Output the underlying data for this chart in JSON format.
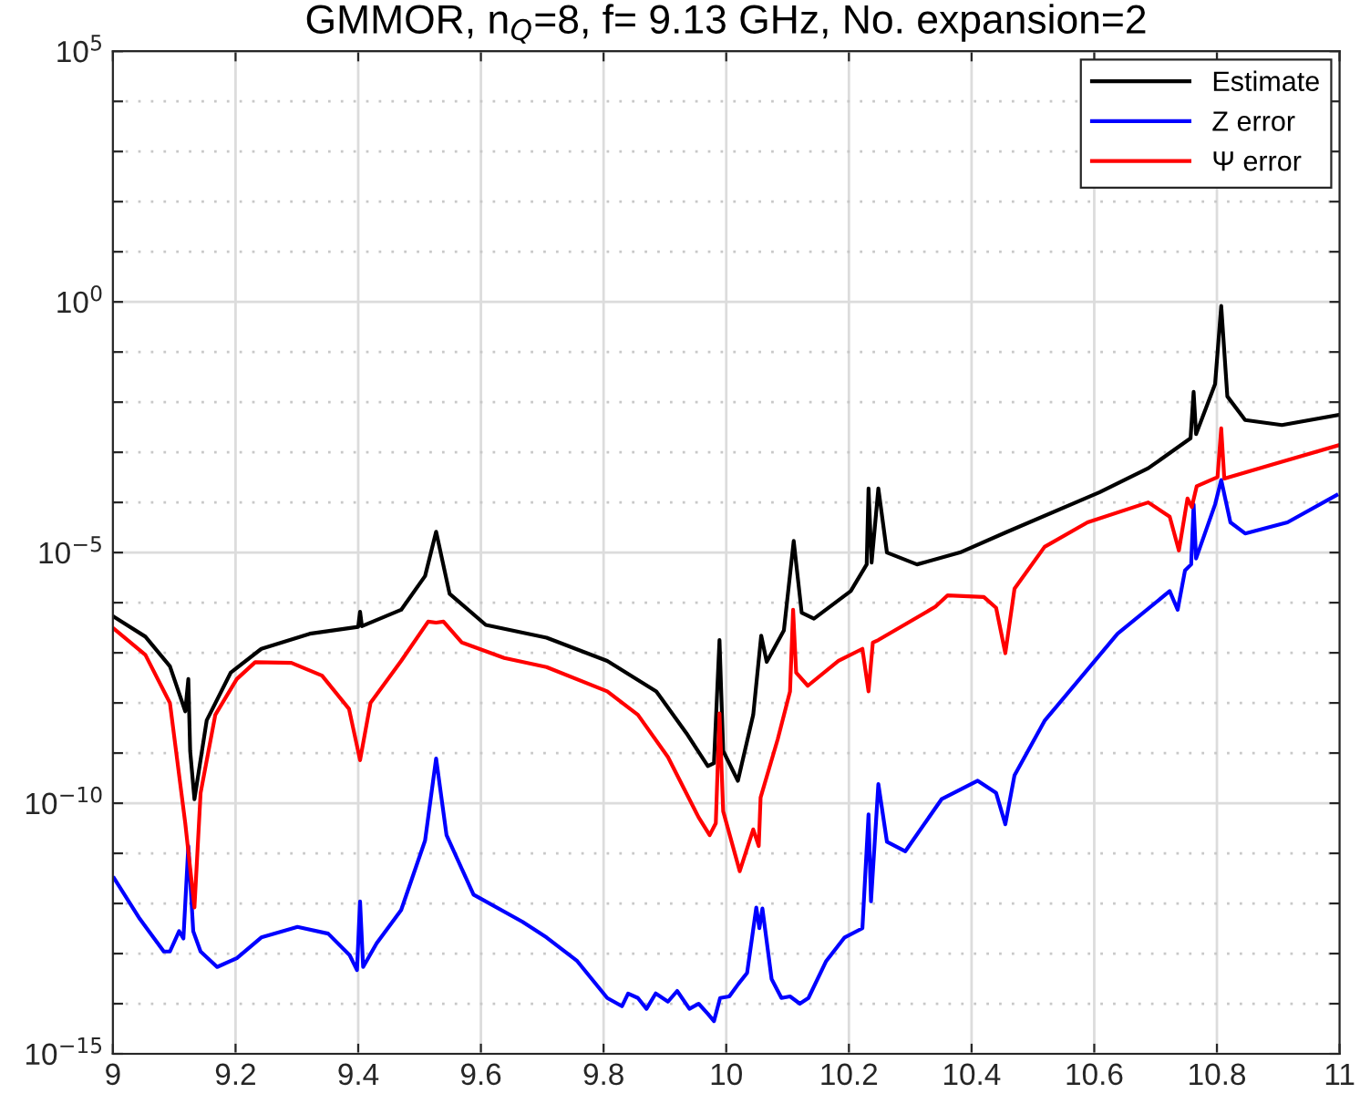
{
  "chart_data": {
    "type": "line",
    "title": "GMMOR, n$_{Q}$=8, f= 9.13 GHz, No. expansion=2",
    "log": "y",
    "grid": true,
    "legend": "top right",
    "line_style": "solid",
    "marker": "none",
    "xlim": [
      9,
      11
    ],
    "xticks": [
      9,
      9.2,
      9.4,
      9.6,
      9.8,
      10,
      10.2,
      10.4,
      10.6,
      10.8,
      11
    ],
    "ylim": [
      1e-15,
      100000.0
    ],
    "yticks": [
      {
        "value": 1e-15,
        "label": "10$^{−15}$"
      },
      {
        "value": 1e-14,
        "label": null
      },
      {
        "value": 1e-13,
        "label": null
      },
      {
        "value": 1e-12,
        "label": null
      },
      {
        "value": 1e-11,
        "label": null
      },
      {
        "value": 1e-10,
        "label": "10$^{−10}$"
      },
      {
        "value": 1e-09,
        "label": null
      },
      {
        "value": 1e-08,
        "label": null
      },
      {
        "value": 1e-07,
        "label": null
      },
      {
        "value": 1e-06,
        "label": null
      },
      {
        "value": 1e-05,
        "label": "10$^{−5}$"
      },
      {
        "value": 0.0001,
        "label": null
      },
      {
        "value": 0.001,
        "label": null
      },
      {
        "value": 0.01,
        "label": null
      },
      {
        "value": 0.1,
        "label": null
      },
      {
        "value": 1,
        "label": "10$^{0}$"
      },
      {
        "value": 10,
        "label": null
      },
      {
        "value": 100,
        "label": null
      },
      {
        "value": 1000,
        "label": null
      },
      {
        "value": 10000,
        "label": null
      },
      {
        "value": 100000,
        "label": "10$^{5}$"
      }
    ],
    "series": [
      {
        "name": "Estimate",
        "color": "#000000",
        "x": [
          9.002,
          9.053,
          9.093,
          9.118,
          9.123,
          9.126,
          9.133,
          9.153,
          9.192,
          9.242,
          9.321,
          9.4,
          9.403,
          9.406,
          9.47,
          9.509,
          9.527,
          9.549,
          9.608,
          9.707,
          9.806,
          9.886,
          9.935,
          9.97,
          9.98,
          9.989,
          9.995,
          10.019,
          10.044,
          10.057,
          10.066,
          10.094,
          10.11,
          10.123,
          10.143,
          10.203,
          10.229,
          10.232,
          10.237,
          10.248,
          10.262,
          10.311,
          10.381,
          10.455,
          10.609,
          10.688,
          10.757,
          10.762,
          10.766,
          10.797,
          10.807,
          10.817,
          10.846,
          10.906,
          11.0
        ],
        "values": [
          5.2e-07,
          2.1e-07,
          5.4e-08,
          6.8e-09,
          3e-08,
          1.1e-09,
          1.2e-10,
          4.5e-09,
          4e-08,
          1.2e-07,
          2.4e-07,
          3.3e-07,
          6.6e-07,
          3.4e-07,
          7.2e-07,
          3.4e-06,
          2.6e-05,
          1.5e-06,
          3.6e-07,
          2e-07,
          6.9e-08,
          1.7e-08,
          2.5e-09,
          5.5e-10,
          6.3e-10,
          1.8e-07,
          1.1e-09,
          2.8e-10,
          5.8e-09,
          2.2e-07,
          6.6e-08,
          2.8e-07,
          1.7e-05,
          6.3e-07,
          4.8e-07,
          1.7e-06,
          5.8e-06,
          0.00019,
          6.3e-06,
          0.00019,
          1e-05,
          5.8e-06,
          1e-05,
          2.5e-05,
          0.00016,
          0.00048,
          0.0019,
          0.016,
          0.0023,
          0.023,
          0.83,
          0.013,
          0.0044,
          0.0035,
          0.0056
        ]
      },
      {
        "name": "Z error",
        "color": "#0000ff",
        "x": [
          9.002,
          9.044,
          9.083,
          9.093,
          9.108,
          9.115,
          9.123,
          9.131,
          9.143,
          9.17,
          9.202,
          9.242,
          9.301,
          9.351,
          9.386,
          9.398,
          9.403,
          9.408,
          9.43,
          9.47,
          9.509,
          9.527,
          9.544,
          9.588,
          9.668,
          9.707,
          9.757,
          9.806,
          9.83,
          9.84,
          9.856,
          9.87,
          9.885,
          9.905,
          9.92,
          9.94,
          9.955,
          9.97,
          9.98,
          9.99,
          10.005,
          10.02,
          10.034,
          10.049,
          10.054,
          10.059,
          10.074,
          10.09,
          10.104,
          10.12,
          10.134,
          10.163,
          10.193,
          10.222,
          10.232,
          10.236,
          10.248,
          10.262,
          10.292,
          10.351,
          10.41,
          10.44,
          10.455,
          10.47,
          10.519,
          10.638,
          10.723,
          10.736,
          10.748,
          10.758,
          10.762,
          10.766,
          10.797,
          10.807,
          10.822,
          10.846,
          10.915,
          10.995
        ],
        "values": [
          3.2e-12,
          4.9e-13,
          1.1e-13,
          1.1e-13,
          2.8e-13,
          2e-13,
          1.4e-11,
          2.8e-13,
          1.1e-13,
          5.4e-14,
          8.1e-14,
          2.1e-13,
          3.4e-13,
          2.5e-13,
          9.3e-14,
          4.7e-14,
          1.1e-12,
          5.4e-14,
          1.6e-13,
          7.4e-13,
          1.8e-11,
          7.8e-10,
          2.3e-11,
          1.5e-12,
          4.3e-13,
          2.1e-13,
          7.1e-14,
          1.3e-14,
          8.9e-15,
          1.6e-14,
          1.3e-14,
          7.9e-15,
          1.6e-14,
          1.1e-14,
          1.8e-14,
          7.9e-15,
          1e-14,
          6.3e-15,
          4.5e-15,
          1.3e-14,
          1.4e-14,
          2.5e-14,
          4.1e-14,
          8.3e-13,
          3.2e-13,
          7.9e-13,
          3.1e-14,
          1.3e-14,
          1.4e-14,
          1e-14,
          1.3e-14,
          7.1e-14,
          2.1e-13,
          3.2e-13,
          6e-11,
          1.1e-12,
          2.4e-10,
          1.7e-11,
          1.1e-11,
          1.2e-10,
          2.8e-10,
          1.6e-10,
          3.8e-11,
          3.6e-10,
          4.4e-09,
          2.4e-07,
          1.7e-06,
          7.2e-07,
          4.4e-06,
          5.8e-06,
          9.1e-05,
          7.6e-06,
          9.1e-05,
          0.00028,
          4e-05,
          2.4e-05,
          4e-05,
          0.00014
        ]
      },
      {
        "name": "Ψ error",
        "color": "#ff0000",
        "x": [
          9.002,
          9.053,
          9.093,
          9.118,
          9.133,
          9.143,
          9.167,
          9.202,
          9.232,
          9.291,
          9.341,
          9.385,
          9.403,
          9.42,
          9.47,
          9.514,
          9.527,
          9.539,
          9.569,
          9.638,
          9.707,
          9.806,
          9.856,
          9.905,
          9.955,
          9.973,
          9.983,
          9.989,
          9.995,
          10.022,
          10.044,
          10.053,
          10.056,
          10.084,
          10.104,
          10.109,
          10.114,
          10.133,
          10.183,
          10.222,
          10.232,
          10.239,
          10.248,
          10.341,
          10.361,
          10.42,
          10.44,
          10.455,
          10.47,
          10.519,
          10.589,
          10.688,
          10.723,
          10.738,
          10.752,
          10.759,
          10.767,
          10.801,
          10.807,
          10.812,
          11.0
        ],
        "values": [
          3e-07,
          9.1e-08,
          1e-08,
          4e-11,
          8.3e-13,
          1.6e-10,
          5.8e-09,
          3e-08,
          6.5e-08,
          6.3e-08,
          3.5e-08,
          7.6e-09,
          7.2e-10,
          1e-08,
          6.9e-08,
          4.2e-07,
          4e-07,
          4.2e-07,
          1.6e-07,
          7.9e-08,
          5.2e-08,
          1.7e-08,
          5.8e-09,
          8.3e-10,
          5.2e-11,
          2.3e-11,
          4e-11,
          6.2e-09,
          6.9e-11,
          4.4e-12,
          3e-11,
          1.4e-11,
          1.3e-10,
          1.9e-09,
          1.7e-08,
          7.2e-07,
          4e-08,
          2.2e-08,
          6.9e-08,
          1.2e-07,
          1.7e-08,
          1.6e-07,
          1.8e-07,
          8.3e-07,
          1.4e-06,
          1.3e-06,
          7.9e-07,
          9.8e-08,
          1.9e-06,
          1.3e-05,
          4e-05,
          0.0001,
          5.2e-05,
          1.1e-05,
          0.00012,
          8.1e-05,
          0.00021,
          0.00032,
          0.003,
          0.0003,
          0.0014
        ]
      }
    ]
  }
}
